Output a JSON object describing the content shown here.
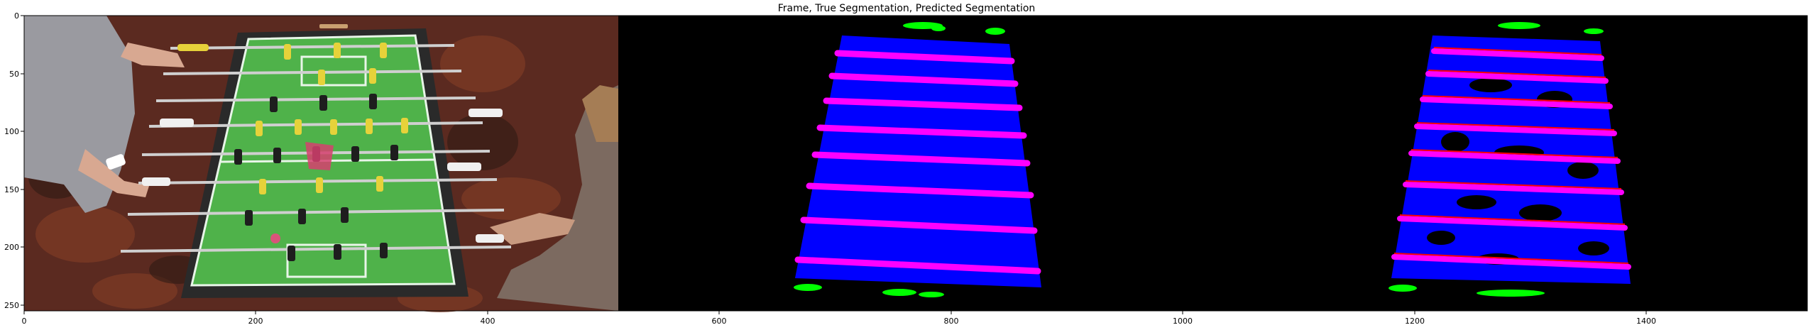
{
  "figure": {
    "title": "Frame, True Segmentation, Predicted Segmentation",
    "x_ticks": [
      "0",
      "200",
      "400",
      "600",
      "800",
      "1000",
      "1200",
      "1400"
    ],
    "y_ticks": [
      "0",
      "50",
      "100",
      "150",
      "200",
      "250"
    ],
    "panels": [
      "Frame",
      "True Segmentation",
      "Predicted Segmentation"
    ],
    "segmentation_colors": {
      "field": "#0000ff",
      "rods": "#ff00ff",
      "players_or_hands": "#00ff00",
      "predicted_rod_edges": "#ff0000",
      "background": "#000000"
    },
    "frame_colors": {
      "field_green": "#4fb24a",
      "carpet": "#5b2a20",
      "yellow_player": "#e6d23a",
      "black_player": "#1e1e1e"
    }
  }
}
